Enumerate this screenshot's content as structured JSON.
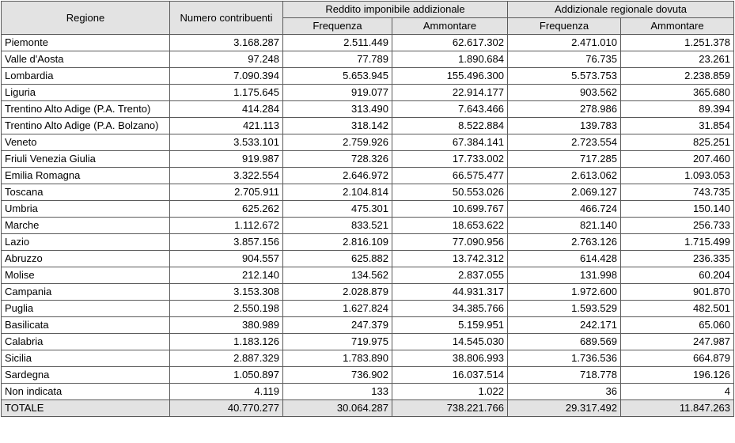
{
  "header": {
    "regione": "Regione",
    "numero_contribuenti": "Numero contribuenti",
    "group1": "Reddito imponibile addizionale",
    "group2": "Addizionale regionale dovuta",
    "frequenza": "Frequenza",
    "ammontare": "Ammontare"
  },
  "rows": [
    {
      "name": "Piemonte",
      "c": "3.168.287",
      "f1": "2.511.449",
      "a1": "62.617.302",
      "f2": "2.471.010",
      "a2": "1.251.378"
    },
    {
      "name": "Valle d'Aosta",
      "c": "97.248",
      "f1": "77.789",
      "a1": "1.890.684",
      "f2": "76.735",
      "a2": "23.261"
    },
    {
      "name": "Lombardia",
      "c": "7.090.394",
      "f1": "5.653.945",
      "a1": "155.496.300",
      "f2": "5.573.753",
      "a2": "2.238.859"
    },
    {
      "name": "Liguria",
      "c": "1.175.645",
      "f1": "919.077",
      "a1": "22.914.177",
      "f2": "903.562",
      "a2": "365.680"
    },
    {
      "name": "Trentino Alto Adige (P.A. Trento)",
      "c": "414.284",
      "f1": "313.490",
      "a1": "7.643.466",
      "f2": "278.986",
      "a2": "89.394"
    },
    {
      "name": "Trentino Alto Adige (P.A. Bolzano)",
      "c": "421.113",
      "f1": "318.142",
      "a1": "8.522.884",
      "f2": "139.783",
      "a2": "31.854"
    },
    {
      "name": "Veneto",
      "c": "3.533.101",
      "f1": "2.759.926",
      "a1": "67.384.141",
      "f2": "2.723.554",
      "a2": "825.251"
    },
    {
      "name": "Friuli Venezia Giulia",
      "c": "919.987",
      "f1": "728.326",
      "a1": "17.733.002",
      "f2": "717.285",
      "a2": "207.460"
    },
    {
      "name": "Emilia Romagna",
      "c": "3.322.554",
      "f1": "2.646.972",
      "a1": "66.575.477",
      "f2": "2.613.062",
      "a2": "1.093.053"
    },
    {
      "name": "Toscana",
      "c": "2.705.911",
      "f1": "2.104.814",
      "a1": "50.553.026",
      "f2": "2.069.127",
      "a2": "743.735"
    },
    {
      "name": "Umbria",
      "c": "625.262",
      "f1": "475.301",
      "a1": "10.699.767",
      "f2": "466.724",
      "a2": "150.140"
    },
    {
      "name": "Marche",
      "c": "1.112.672",
      "f1": "833.521",
      "a1": "18.653.622",
      "f2": "821.140",
      "a2": "256.733"
    },
    {
      "name": "Lazio",
      "c": "3.857.156",
      "f1": "2.816.109",
      "a1": "77.090.956",
      "f2": "2.763.126",
      "a2": "1.715.499"
    },
    {
      "name": "Abruzzo",
      "c": "904.557",
      "f1": "625.882",
      "a1": "13.742.312",
      "f2": "614.428",
      "a2": "236.335"
    },
    {
      "name": "Molise",
      "c": "212.140",
      "f1": "134.562",
      "a1": "2.837.055",
      "f2": "131.998",
      "a2": "60.204"
    },
    {
      "name": "Campania",
      "c": "3.153.308",
      "f1": "2.028.879",
      "a1": "44.931.317",
      "f2": "1.972.600",
      "a2": "901.870"
    },
    {
      "name": "Puglia",
      "c": "2.550.198",
      "f1": "1.627.824",
      "a1": "34.385.766",
      "f2": "1.593.529",
      "a2": "482.501"
    },
    {
      "name": "Basilicata",
      "c": "380.989",
      "f1": "247.379",
      "a1": "5.159.951",
      "f2": "242.171",
      "a2": "65.060"
    },
    {
      "name": "Calabria",
      "c": "1.183.126",
      "f1": "719.975",
      "a1": "14.545.030",
      "f2": "689.569",
      "a2": "247.987"
    },
    {
      "name": "Sicilia",
      "c": "2.887.329",
      "f1": "1.783.890",
      "a1": "38.806.993",
      "f2": "1.736.536",
      "a2": "664.879"
    },
    {
      "name": "Sardegna",
      "c": "1.050.897",
      "f1": "736.902",
      "a1": "16.037.514",
      "f2": "718.778",
      "a2": "196.126"
    },
    {
      "name": "Non indicata",
      "c": "4.119",
      "f1": "133",
      "a1": "1.022",
      "f2": "36",
      "a2": "4"
    }
  ],
  "total": {
    "name": "TOTALE",
    "c": "40.770.277",
    "f1": "30.064.287",
    "a1": "738.221.766",
    "f2": "29.317.492",
    "a2": "11.847.263"
  }
}
